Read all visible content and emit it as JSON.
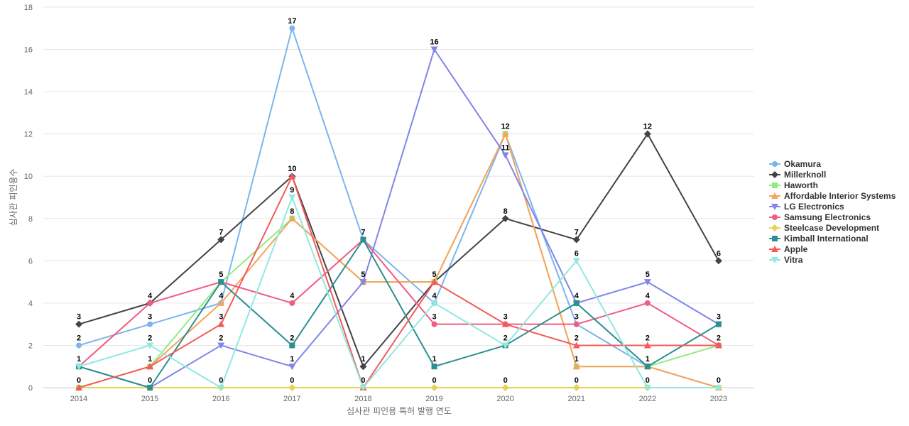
{
  "chart_data": {
    "type": "line",
    "xlabel": "심사관 피인용 특허 발행 연도",
    "ylabel": "심사관 피인용수",
    "x": [
      "2014",
      "2015",
      "2016",
      "2017",
      "2018",
      "2019",
      "2020",
      "2021",
      "2022",
      "2023"
    ],
    "ylim": [
      0,
      18
    ],
    "yticks": [
      0,
      2,
      4,
      6,
      8,
      10,
      12,
      14,
      16,
      18
    ],
    "grid": true,
    "legend_position": "right",
    "series": [
      {
        "name": "Okamura",
        "color": "#7cb5ec",
        "marker": "circle",
        "values": [
          2,
          3,
          4,
          17,
          7,
          4,
          12,
          3,
          1,
          0
        ]
      },
      {
        "name": "Millerknoll",
        "color": "#434348",
        "marker": "diamond",
        "values": [
          3,
          4,
          7,
          10,
          1,
          5,
          8,
          7,
          12,
          6
        ]
      },
      {
        "name": "Haworth",
        "color": "#90ed7d",
        "marker": "square",
        "values": [
          0,
          1,
          5,
          8,
          5,
          5,
          12,
          1,
          1,
          2
        ]
      },
      {
        "name": "Affordable Interior Systems",
        "color": "#f7a35c",
        "marker": "triangle",
        "values": [
          0,
          1,
          4,
          8,
          5,
          5,
          12,
          1,
          1,
          0
        ]
      },
      {
        "name": "LG Electronics",
        "color": "#8085e9",
        "marker": "triangle-down",
        "values": [
          1,
          0,
          2,
          1,
          5,
          16,
          11,
          4,
          5,
          3
        ]
      },
      {
        "name": "Samsung Electronics",
        "color": "#f15c80",
        "marker": "circle",
        "values": [
          1,
          4,
          5,
          4,
          7,
          3,
          3,
          3,
          4,
          2
        ]
      },
      {
        "name": "Steelcase Development",
        "color": "#e4d354",
        "marker": "diamond",
        "values": [
          0,
          0,
          0,
          0,
          0,
          0,
          0,
          0,
          0,
          0
        ]
      },
      {
        "name": "Kimball International",
        "color": "#2b908f",
        "marker": "square",
        "values": [
          1,
          0,
          5,
          2,
          7,
          1,
          2,
          4,
          1,
          3
        ]
      },
      {
        "name": "Apple",
        "color": "#f45b5b",
        "marker": "triangle",
        "values": [
          0,
          1,
          3,
          10,
          0,
          5,
          3,
          2,
          2,
          2
        ]
      },
      {
        "name": "Vitra",
        "color": "#91e8e1",
        "marker": "triangle-down",
        "values": [
          1,
          2,
          0,
          9,
          0,
          4,
          2,
          6,
          0,
          0
        ]
      }
    ],
    "data_labels": [
      {
        "x": "2014",
        "y": 3,
        "text": "3"
      },
      {
        "x": "2014",
        "y": 2,
        "text": "2"
      },
      {
        "x": "2014",
        "y": 1,
        "text": "1"
      },
      {
        "x": "2014",
        "y": 0,
        "text": "0"
      },
      {
        "x": "2015",
        "y": 4,
        "text": "4"
      },
      {
        "x": "2015",
        "y": 3,
        "text": "3"
      },
      {
        "x": "2015",
        "y": 2,
        "text": "2"
      },
      {
        "x": "2015",
        "y": 1,
        "text": "1"
      },
      {
        "x": "2015",
        "y": 0,
        "text": "0"
      },
      {
        "x": "2016",
        "y": 7,
        "text": "7"
      },
      {
        "x": "2016",
        "y": 5,
        "text": "5"
      },
      {
        "x": "2016",
        "y": 4,
        "text": "4"
      },
      {
        "x": "2016",
        "y": 3,
        "text": "3"
      },
      {
        "x": "2016",
        "y": 2,
        "text": "2"
      },
      {
        "x": "2016",
        "y": 0,
        "text": "0"
      },
      {
        "x": "2017",
        "y": 17,
        "text": "17"
      },
      {
        "x": "2017",
        "y": 10,
        "text": "10"
      },
      {
        "x": "2017",
        "y": 9,
        "text": "9"
      },
      {
        "x": "2017",
        "y": 8,
        "text": "8"
      },
      {
        "x": "2017",
        "y": 4,
        "text": "4"
      },
      {
        "x": "2017",
        "y": 2,
        "text": "2"
      },
      {
        "x": "2017",
        "y": 1,
        "text": "1"
      },
      {
        "x": "2017",
        "y": 0,
        "text": "0"
      },
      {
        "x": "2018",
        "y": 7,
        "text": "7"
      },
      {
        "x": "2018",
        "y": 5,
        "text": "5"
      },
      {
        "x": "2018",
        "y": 1,
        "text": "1"
      },
      {
        "x": "2018",
        "y": 0,
        "text": "0"
      },
      {
        "x": "2019",
        "y": 16,
        "text": "16"
      },
      {
        "x": "2019",
        "y": 5,
        "text": "5"
      },
      {
        "x": "2019",
        "y": 4,
        "text": "4"
      },
      {
        "x": "2019",
        "y": 3,
        "text": "3"
      },
      {
        "x": "2019",
        "y": 1,
        "text": "1"
      },
      {
        "x": "2019",
        "y": 0,
        "text": "0"
      },
      {
        "x": "2020",
        "y": 12,
        "text": "12"
      },
      {
        "x": "2020",
        "y": 11,
        "text": "11"
      },
      {
        "x": "2020",
        "y": 8,
        "text": "8"
      },
      {
        "x": "2020",
        "y": 3,
        "text": "3"
      },
      {
        "x": "2020",
        "y": 2,
        "text": "2"
      },
      {
        "x": "2020",
        "y": 0,
        "text": "0"
      },
      {
        "x": "2021",
        "y": 7,
        "text": "7"
      },
      {
        "x": "2021",
        "y": 6,
        "text": "6"
      },
      {
        "x": "2021",
        "y": 4,
        "text": "4"
      },
      {
        "x": "2021",
        "y": 3,
        "text": "3"
      },
      {
        "x": "2021",
        "y": 2,
        "text": "2"
      },
      {
        "x": "2021",
        "y": 1,
        "text": "1"
      },
      {
        "x": "2021",
        "y": 0,
        "text": "0"
      },
      {
        "x": "2022",
        "y": 12,
        "text": "12"
      },
      {
        "x": "2022",
        "y": 5,
        "text": "5"
      },
      {
        "x": "2022",
        "y": 4,
        "text": "4"
      },
      {
        "x": "2022",
        "y": 2,
        "text": "2"
      },
      {
        "x": "2022",
        "y": 1,
        "text": "1"
      },
      {
        "x": "2022",
        "y": 0,
        "text": "0"
      },
      {
        "x": "2023",
        "y": 6,
        "text": "6"
      },
      {
        "x": "2023",
        "y": 3,
        "text": "3"
      },
      {
        "x": "2023",
        "y": 2,
        "text": "2"
      },
      {
        "x": "2023",
        "y": 0,
        "text": "0"
      }
    ]
  }
}
